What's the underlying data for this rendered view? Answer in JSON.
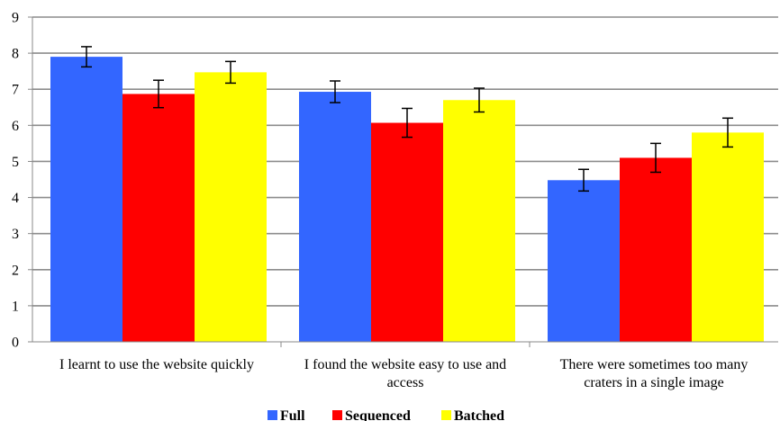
{
  "chart_data": {
    "type": "bar",
    "categories": [
      [
        "I learnt to use the website quickly"
      ],
      [
        "I found the website easy to use and",
        "access"
      ],
      [
        "There were sometimes too many",
        "craters in a single image"
      ]
    ],
    "series": [
      {
        "name": "Full",
        "color": "#3366FF",
        "values": [
          7.9,
          6.93,
          4.48
        ],
        "errors": [
          0.28,
          0.3,
          0.3
        ]
      },
      {
        "name": "Sequenced",
        "color": "#FF0000",
        "values": [
          6.87,
          6.07,
          5.1
        ],
        "errors": [
          0.38,
          0.4,
          0.4
        ]
      },
      {
        "name": "Batched",
        "color": "#FFFF00",
        "values": [
          7.47,
          6.7,
          5.8
        ],
        "errors": [
          0.3,
          0.33,
          0.4
        ]
      }
    ],
    "ylim": [
      0,
      9
    ],
    "yticks": [
      0,
      1,
      2,
      3,
      4,
      5,
      6,
      7,
      8,
      9
    ],
    "grid": true,
    "legend_position": "bottom-center",
    "title": "",
    "xlabel": "",
    "ylabel": ""
  }
}
